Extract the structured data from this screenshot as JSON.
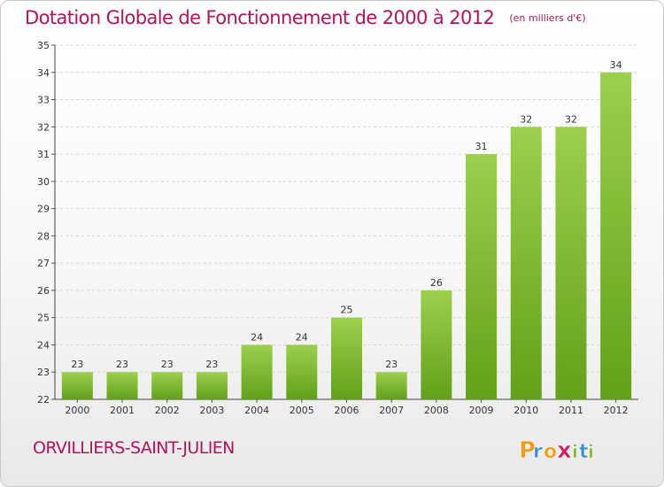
{
  "header": {
    "title": "Dotation Globale de Fonctionnement de 2000 à 2012",
    "unit": "(en milliers d'€)"
  },
  "footer": {
    "commune": "ORVILLIERS-SAINT-JULIEN",
    "brand": "Proxiti"
  },
  "colors": {
    "title": "#b0155a",
    "bar_top": "#9ccf4d",
    "bar_bottom": "#62a11a",
    "logo_letters": [
      "#f39a1b",
      "#3b8ed6",
      "#f39a1b",
      "#d11e5e",
      "#7cbb2a",
      "#3b8ed6",
      "#7cbb2a"
    ]
  },
  "chart_data": {
    "type": "bar",
    "title": "Dotation Globale de Fonctionnement de 2000 à 2012",
    "subtitle": "(en milliers d'€)",
    "categories": [
      "2000",
      "2001",
      "2002",
      "2003",
      "2004",
      "2005",
      "2006",
      "2007",
      "2008",
      "2009",
      "2010",
      "2011",
      "2012"
    ],
    "values": [
      23,
      23,
      23,
      23,
      24,
      24,
      25,
      23,
      26,
      31,
      32,
      32,
      34
    ],
    "ylim": [
      22,
      35
    ],
    "yticks": [
      22,
      23,
      24,
      25,
      26,
      27,
      28,
      29,
      30,
      31,
      32,
      33,
      34,
      35
    ],
    "grid": true,
    "data_labels": true
  }
}
